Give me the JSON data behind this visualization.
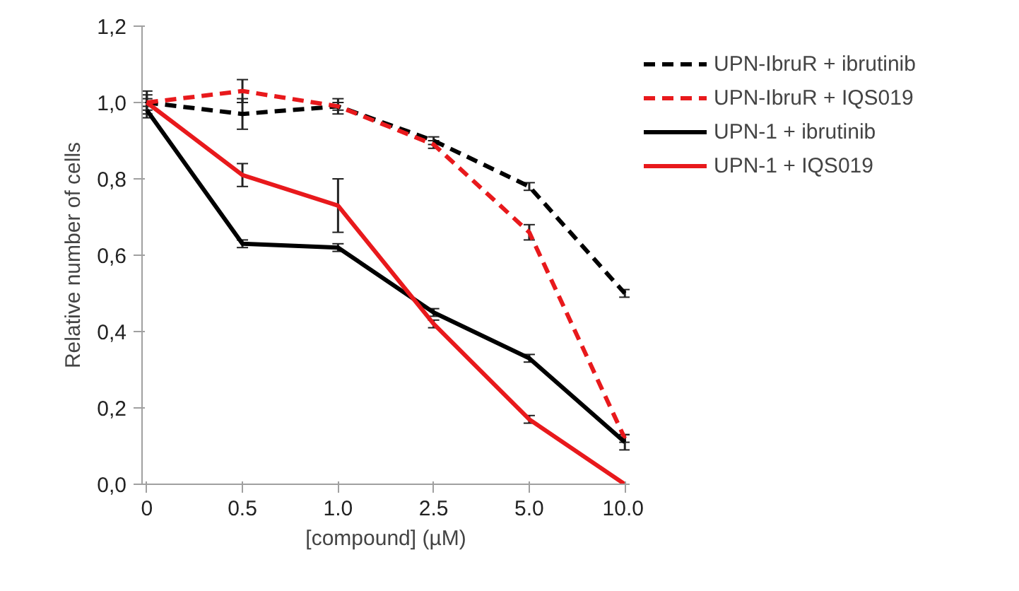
{
  "chart_data": {
    "type": "line",
    "xlabel": "[compound] (µM)",
    "ylabel": "Relative number of cells",
    "categories": [
      "0",
      "0.5",
      "1.0",
      "2.5",
      "5.0",
      "10.0"
    ],
    "ylim": [
      0,
      1.2
    ],
    "yticks": [
      {
        "value": 0,
        "label": "0,0"
      },
      {
        "value": 0.2,
        "label": "0,2"
      },
      {
        "value": 0.4,
        "label": "0,4"
      },
      {
        "value": 0.6,
        "label": "0,6"
      },
      {
        "value": 0.8,
        "label": "0,8"
      },
      {
        "value": 1.0,
        "label": "1,0"
      },
      {
        "value": 1.2,
        "label": "1,2"
      }
    ],
    "grid": false,
    "legend": "right",
    "marker": "none",
    "series": [
      {
        "name": "UPN-IbruR + ibrutinib",
        "color": "#000000",
        "line_style": "dashed",
        "values": [
          1.0,
          0.97,
          0.99,
          0.9,
          0.78,
          0.5
        ],
        "errors": [
          0.03,
          0.04,
          0.02,
          0.01,
          0.01,
          0.01
        ]
      },
      {
        "name": "UPN-IbruR + IQS019",
        "color": "#e8191c",
        "line_style": "dashed",
        "values": [
          1.0,
          1.03,
          0.99,
          0.89,
          0.66,
          0.12
        ],
        "errors": [
          0.02,
          0.03,
          0.01,
          0.01,
          0.02,
          0.01
        ]
      },
      {
        "name": "UPN-1 + ibrutinib",
        "color": "#000000",
        "line_style": "solid",
        "values": [
          0.98,
          0.63,
          0.62,
          0.45,
          0.33,
          0.11
        ],
        "errors": [
          0.02,
          0.01,
          0.01,
          0.01,
          0.01,
          0.02
        ]
      },
      {
        "name": "UPN-1 + IQS019",
        "color": "#e8191c",
        "line_style": "solid",
        "values": [
          1.0,
          0.81,
          0.73,
          0.42,
          0.17,
          0.0
        ],
        "errors": [
          0.01,
          0.03,
          0.07,
          0.01,
          0.01,
          null
        ]
      }
    ]
  }
}
